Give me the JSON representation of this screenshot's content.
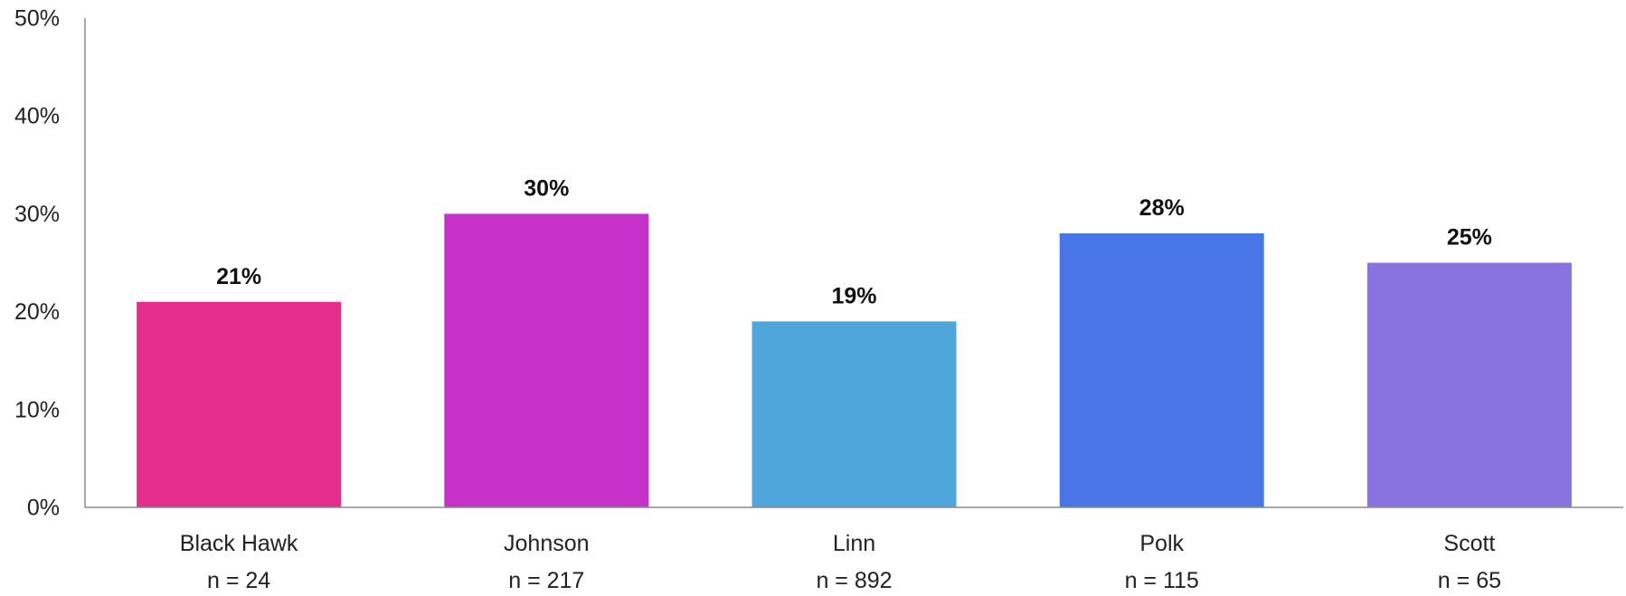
{
  "chart_data": {
    "type": "bar",
    "title": "",
    "xlabel": "",
    "ylabel": "",
    "categories": [
      "Black Hawk",
      "Johnson",
      "Linn",
      "Polk",
      "Scott"
    ],
    "sample_sizes": [
      "n = 24",
      "n = 217",
      "n = 892",
      "n = 115",
      "n = 65"
    ],
    "values": [
      21,
      30,
      19,
      28,
      25
    ],
    "value_labels": [
      "21%",
      "30%",
      "19%",
      "28%",
      "25%"
    ],
    "colors": [
      "#E52E8C",
      "#C731C9",
      "#4FA6DB",
      "#4976E6",
      "#8873E0"
    ],
    "ylim": [
      0,
      50
    ],
    "yticks": [
      0,
      10,
      20,
      30,
      40,
      50
    ],
    "ytick_labels": [
      "0%",
      "10%",
      "20%",
      "30%",
      "40%",
      "50%"
    ],
    "grid": false,
    "legend": "none"
  }
}
